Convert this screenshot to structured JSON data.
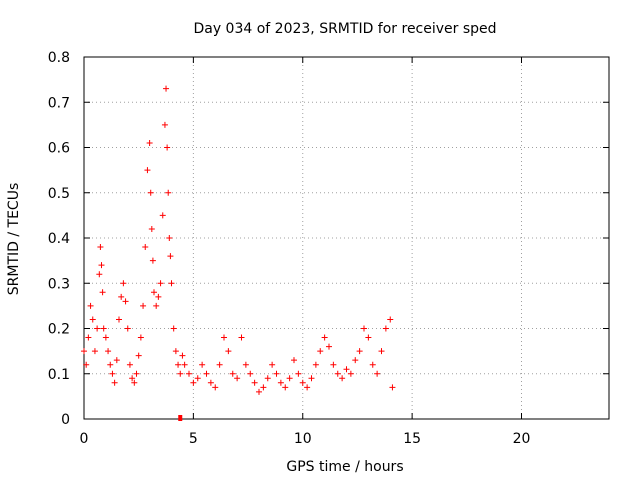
{
  "chart_data": {
    "type": "scatter",
    "title": "Day 034 of 2023, SRMTID for receiver sped",
    "xlabel": "GPS time / hours",
    "ylabel": "SRMTID / TECUs",
    "xlim": [
      0,
      24
    ],
    "ylim": [
      0,
      0.8
    ],
    "xticks": [
      0,
      5,
      10,
      15,
      20
    ],
    "yticks": [
      0,
      0.1,
      0.2,
      0.3,
      0.4,
      0.5,
      0.6,
      0.7,
      0.8
    ],
    "grid": true,
    "marker": "+",
    "colors": {
      "series": "#ff0000",
      "grid": "#a0a0a0",
      "axis": "#000000"
    },
    "series": [
      {
        "name": "SRMTID",
        "x": [
          0.0,
          0.1,
          0.2,
          0.3,
          0.4,
          0.5,
          0.6,
          0.7,
          0.75,
          0.8,
          0.85,
          0.9,
          1.0,
          1.1,
          1.2,
          1.3,
          1.4,
          1.5,
          1.6,
          1.7,
          1.8,
          1.9,
          2.0,
          2.1,
          2.2,
          2.3,
          2.4,
          2.5,
          2.6,
          2.7,
          2.8,
          2.9,
          3.0,
          3.05,
          3.1,
          3.15,
          3.2,
          3.3,
          3.4,
          3.5,
          3.6,
          3.7,
          3.75,
          3.8,
          3.85,
          3.9,
          3.95,
          4.0,
          4.1,
          4.2,
          4.3,
          4.4,
          4.5,
          4.6,
          4.8,
          5.0,
          5.2,
          5.4,
          5.6,
          5.8,
          6.0,
          6.2,
          6.4,
          6.6,
          6.8,
          7.0,
          7.2,
          7.4,
          7.6,
          7.8,
          8.0,
          8.2,
          8.4,
          8.6,
          8.8,
          9.0,
          9.2,
          9.4,
          9.6,
          9.8,
          10.0,
          10.2,
          10.4,
          10.6,
          10.8,
          11.0,
          11.2,
          11.4,
          11.6,
          11.8,
          12.0,
          12.2,
          12.4,
          12.6,
          12.8,
          13.0,
          13.2,
          13.4,
          13.6,
          13.8,
          14.0,
          14.1
        ],
        "y": [
          0.15,
          0.12,
          0.18,
          0.25,
          0.22,
          0.15,
          0.2,
          0.32,
          0.38,
          0.34,
          0.28,
          0.2,
          0.18,
          0.15,
          0.12,
          0.1,
          0.08,
          0.13,
          0.22,
          0.27,
          0.3,
          0.26,
          0.2,
          0.12,
          0.09,
          0.08,
          0.1,
          0.14,
          0.18,
          0.25,
          0.38,
          0.55,
          0.61,
          0.5,
          0.42,
          0.35,
          0.28,
          0.25,
          0.27,
          0.3,
          0.45,
          0.65,
          0.73,
          0.6,
          0.5,
          0.4,
          0.36,
          0.3,
          0.2,
          0.15,
          0.12,
          0.1,
          0.14,
          0.12,
          0.1,
          0.08,
          0.09,
          0.12,
          0.1,
          0.08,
          0.07,
          0.12,
          0.18,
          0.15,
          0.1,
          0.09,
          0.18,
          0.12,
          0.1,
          0.08,
          0.06,
          0.07,
          0.09,
          0.12,
          0.1,
          0.08,
          0.07,
          0.09,
          0.13,
          0.1,
          0.08,
          0.07,
          0.09,
          0.12,
          0.15,
          0.18,
          0.16,
          0.12,
          0.1,
          0.09,
          0.11,
          0.1,
          0.13,
          0.15,
          0.2,
          0.18,
          0.12,
          0.1,
          0.15,
          0.2,
          0.22,
          0.07
        ]
      }
    ],
    "markers": [
      {
        "x": 4.4,
        "y": 0.0
      }
    ]
  }
}
